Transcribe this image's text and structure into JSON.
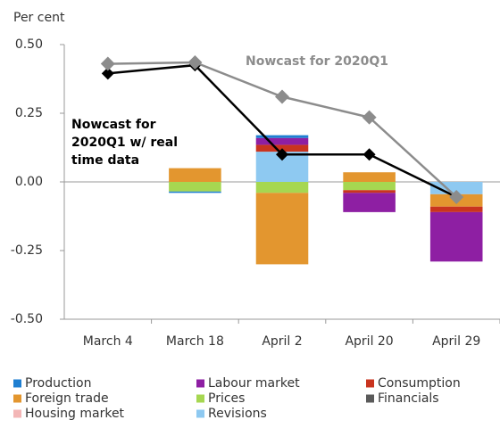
{
  "chart_data": {
    "type": "bar",
    "stacked": true,
    "y_label": "Per cent",
    "categories": [
      "March 4",
      "March 18",
      "April 2",
      "April 20",
      "April 29"
    ],
    "ylim": [
      -0.5,
      0.5
    ],
    "yticks": [
      {
        "value": 0.5,
        "label": "0.50"
      },
      {
        "value": 0.25,
        "label": "0.25"
      },
      {
        "value": 0,
        "label": "0.00"
      },
      {
        "value": -0.25,
        "label": "-0.25"
      },
      {
        "value": -0.5,
        "label": "-0.50"
      }
    ],
    "series": [
      {
        "name": "Production",
        "color": "#1f7fd1",
        "values": [
          0,
          -0.005,
          0.01,
          0,
          0
        ]
      },
      {
        "name": "Labour market",
        "color": "#8e1fa3",
        "values": [
          0,
          0,
          0.025,
          -0.07,
          -0.18
        ]
      },
      {
        "name": "Consumption",
        "color": "#c9341f",
        "values": [
          0,
          0,
          0.025,
          -0.01,
          -0.02
        ]
      },
      {
        "name": "Foreign trade",
        "color": "#e3962f",
        "values": [
          0,
          0.05,
          -0.26,
          0.035,
          -0.045
        ]
      },
      {
        "name": "Prices",
        "color": "#a6d751",
        "values": [
          0,
          -0.035,
          -0.04,
          -0.03,
          0
        ]
      },
      {
        "name": "Financials",
        "color": "#5a5a5a",
        "values": [
          0,
          0,
          0,
          0,
          0
        ]
      },
      {
        "name": "Housing market",
        "color": "#f3b6b6",
        "values": [
          0,
          0,
          0,
          0,
          0
        ]
      },
      {
        "name": "Revisions",
        "color": "#8ec9f1",
        "values": [
          0,
          0,
          0.11,
          0,
          -0.045
        ]
      }
    ],
    "lines": [
      {
        "name": "Nowcast for 2020Q1 w/ real time data",
        "color": "#000000",
        "values": [
          0.395,
          0.425,
          0.1,
          0.1,
          -0.055
        ]
      },
      {
        "name": "Nowcast for 2020Q1",
        "color": "#8c8c8c",
        "values": [
          0.43,
          0.435,
          0.31,
          0.235,
          -0.055
        ]
      }
    ]
  }
}
